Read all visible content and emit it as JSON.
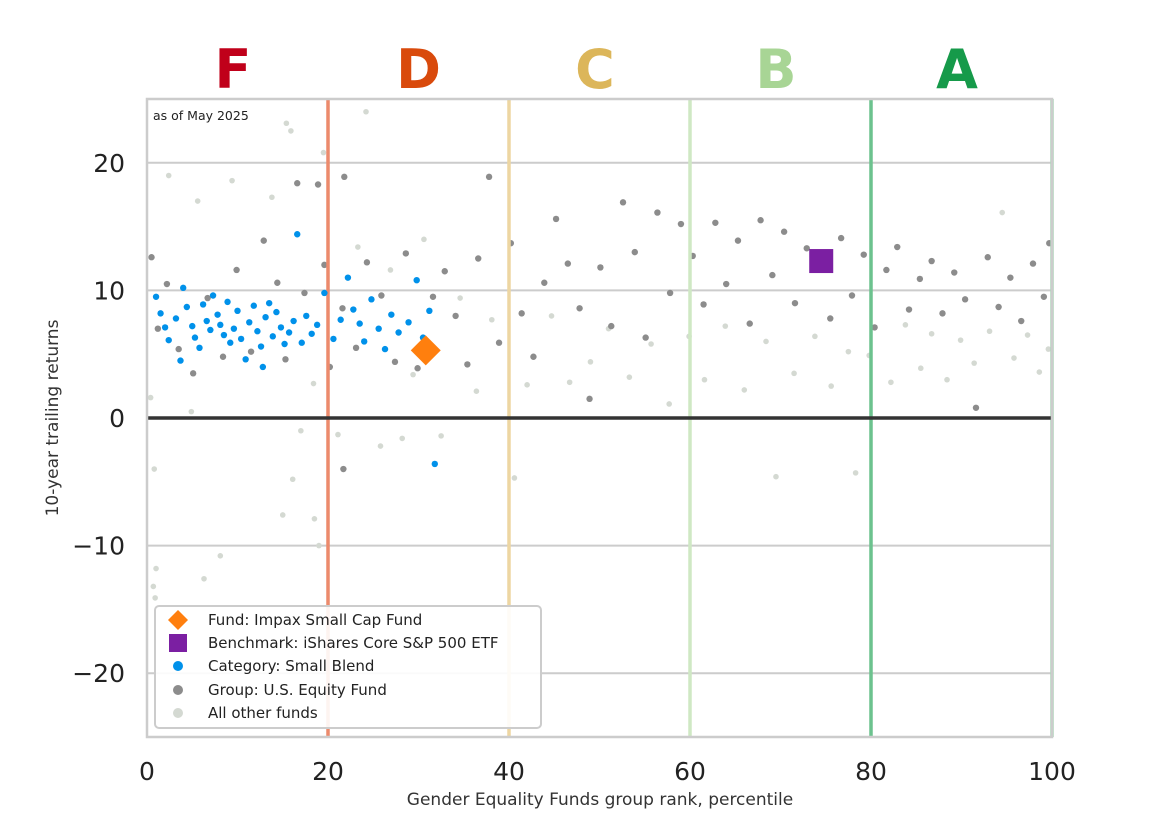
{
  "chart_data": {
    "type": "scatter",
    "annotation": "as of May 2025",
    "xlabel": "Gender Equality Funds group rank, percentile",
    "ylabel": "10-year trailing returns",
    "xlim": [
      0,
      100
    ],
    "ylim": [
      -25,
      25
    ],
    "xticks": [
      0,
      20,
      40,
      60,
      80,
      100
    ],
    "yticks": [
      -20,
      -10,
      0,
      10,
      20
    ],
    "ytick_labels": [
      "−20",
      "−10",
      "0",
      "10",
      "20"
    ],
    "grid": "horizontal",
    "zero_line": true,
    "grades": [
      {
        "label": "F",
        "center": 9.5,
        "color": "#c0001a"
      },
      {
        "label": "D",
        "center": 30,
        "color": "#d94a0c"
      },
      {
        "label": "C",
        "center": 49.5,
        "color": "#dcb65a"
      },
      {
        "label": "B",
        "center": 69.5,
        "color": "#a8d595"
      },
      {
        "label": "A",
        "center": 89.5,
        "color": "#169a4a"
      }
    ],
    "grade_boundaries": [
      {
        "x": 20,
        "color": "#ec8a6c"
      },
      {
        "x": 40,
        "color": "#edd6a2"
      },
      {
        "x": 60,
        "color": "#cfe8c4"
      },
      {
        "x": 80,
        "color": "#6cc28e"
      },
      {
        "x": 100,
        "color": "#a5d6b5"
      }
    ],
    "legend_position": "bottom-left",
    "series": [
      {
        "name": "Fund: Impax Small Cap Fund",
        "marker": "diamond",
        "color": "#ff7f0e",
        "points": [
          [
            30.8,
            5.3
          ]
        ]
      },
      {
        "name": "Benchmark: iShares Core S&P 500 ETF",
        "marker": "square",
        "color": "#7b1fa2",
        "points": [
          [
            74.5,
            12.3
          ]
        ]
      },
      {
        "name": "Category: Small Blend",
        "marker": "dot",
        "color": "#0091ea",
        "points": [
          [
            1,
            9.5
          ],
          [
            1.5,
            8.2
          ],
          [
            2,
            7.1
          ],
          [
            2.4,
            6.1
          ],
          [
            3.2,
            7.8
          ],
          [
            4,
            10.2
          ],
          [
            4.4,
            8.7
          ],
          [
            5,
            7.2
          ],
          [
            5.3,
            6.3
          ],
          [
            5.8,
            5.5
          ],
          [
            6.2,
            8.9
          ],
          [
            6.6,
            7.6
          ],
          [
            7,
            6.9
          ],
          [
            7.3,
            9.6
          ],
          [
            7.8,
            8.1
          ],
          [
            8.1,
            7.3
          ],
          [
            8.5,
            6.5
          ],
          [
            8.9,
            9.1
          ],
          [
            9.2,
            5.9
          ],
          [
            9.6,
            7.0
          ],
          [
            10,
            8.4
          ],
          [
            10.4,
            6.2
          ],
          [
            10.9,
            4.6
          ],
          [
            11.3,
            7.5
          ],
          [
            11.8,
            8.8
          ],
          [
            12.2,
            6.8
          ],
          [
            12.6,
            5.6
          ],
          [
            13.1,
            7.9
          ],
          [
            13.5,
            9.0
          ],
          [
            13.9,
            6.4
          ],
          [
            14.3,
            8.3
          ],
          [
            14.8,
            7.1
          ],
          [
            15.2,
            5.8
          ],
          [
            15.7,
            6.7
          ],
          [
            16.2,
            7.6
          ],
          [
            16.6,
            14.4
          ],
          [
            17.1,
            5.9
          ],
          [
            17.6,
            8.0
          ],
          [
            18.2,
            6.6
          ],
          [
            18.8,
            7.3
          ],
          [
            19.6,
            9.8
          ],
          [
            20.6,
            6.2
          ],
          [
            21.4,
            7.7
          ],
          [
            22.2,
            11.0
          ],
          [
            22.8,
            8.5
          ],
          [
            23.5,
            7.4
          ],
          [
            24.0,
            6.0
          ],
          [
            24.8,
            9.3
          ],
          [
            25.6,
            7.0
          ],
          [
            26.3,
            5.4
          ],
          [
            27.0,
            8.1
          ],
          [
            27.8,
            6.7
          ],
          [
            28.9,
            7.5
          ],
          [
            29.8,
            10.8
          ],
          [
            30.5,
            6.3
          ],
          [
            31.2,
            8.4
          ],
          [
            31.8,
            -3.6
          ],
          [
            3.7,
            4.5
          ],
          [
            12.8,
            4.0
          ]
        ]
      },
      {
        "name": "Group: U.S. Equity Fund",
        "marker": "dot",
        "color": "#8c8c8c",
        "points": [
          [
            0.5,
            12.6
          ],
          [
            1.2,
            7.0
          ],
          [
            2.2,
            10.5
          ],
          [
            3.5,
            5.4
          ],
          [
            5.1,
            3.5
          ],
          [
            6.7,
            9.4
          ],
          [
            8.4,
            4.8
          ],
          [
            9.9,
            11.6
          ],
          [
            11.5,
            5.2
          ],
          [
            12.9,
            13.9
          ],
          [
            14.4,
            10.6
          ],
          [
            15.3,
            4.6
          ],
          [
            16.6,
            18.4
          ],
          [
            17.4,
            9.8
          ],
          [
            18.9,
            18.3
          ],
          [
            19.6,
            12.0
          ],
          [
            20.2,
            4.0
          ],
          [
            21.6,
            8.6
          ],
          [
            21.8,
            18.9
          ],
          [
            21.7,
            -4.0
          ],
          [
            23.1,
            5.5
          ],
          [
            24.3,
            12.2
          ],
          [
            25.9,
            9.6
          ],
          [
            27.4,
            4.4
          ],
          [
            28.6,
            12.9
          ],
          [
            29.9,
            3.9
          ],
          [
            31.6,
            9.5
          ],
          [
            32.9,
            11.5
          ],
          [
            34.1,
            8.0
          ],
          [
            35.4,
            4.2
          ],
          [
            36.6,
            12.5
          ],
          [
            37.8,
            18.9
          ],
          [
            38.9,
            5.9
          ],
          [
            40.2,
            13.7
          ],
          [
            41.4,
            8.2
          ],
          [
            42.7,
            4.8
          ],
          [
            43.9,
            10.6
          ],
          [
            45.2,
            15.6
          ],
          [
            46.5,
            12.1
          ],
          [
            47.8,
            8.6
          ],
          [
            48.9,
            1.5
          ],
          [
            50.1,
            11.8
          ],
          [
            51.3,
            7.2
          ],
          [
            52.6,
            16.9
          ],
          [
            53.9,
            13.0
          ],
          [
            55.1,
            6.3
          ],
          [
            56.4,
            16.1
          ],
          [
            57.8,
            9.8
          ],
          [
            59.0,
            15.2
          ],
          [
            60.3,
            12.7
          ],
          [
            61.5,
            8.9
          ],
          [
            62.8,
            15.3
          ],
          [
            64.0,
            10.5
          ],
          [
            65.3,
            13.9
          ],
          [
            66.6,
            7.4
          ],
          [
            67.8,
            15.5
          ],
          [
            69.1,
            11.2
          ],
          [
            70.4,
            14.6
          ],
          [
            71.6,
            9.0
          ],
          [
            72.9,
            13.3
          ],
          [
            74.2,
            11.9
          ],
          [
            75.5,
            7.8
          ],
          [
            76.7,
            14.1
          ],
          [
            77.9,
            9.6
          ],
          [
            79.2,
            12.8
          ],
          [
            80.4,
            7.1
          ],
          [
            81.7,
            11.6
          ],
          [
            82.9,
            13.4
          ],
          [
            84.2,
            8.5
          ],
          [
            85.4,
            10.9
          ],
          [
            86.7,
            12.3
          ],
          [
            87.9,
            8.2
          ],
          [
            89.2,
            11.4
          ],
          [
            90.4,
            9.3
          ],
          [
            91.6,
            0.8
          ],
          [
            92.9,
            12.6
          ],
          [
            94.1,
            8.7
          ],
          [
            95.4,
            11.0
          ],
          [
            96.6,
            7.6
          ],
          [
            97.9,
            12.1
          ],
          [
            99.1,
            9.5
          ],
          [
            99.7,
            13.7
          ]
        ]
      },
      {
        "name": "All other funds",
        "marker": "dot",
        "color": "#d4d9d2",
        "points": [
          [
            0.4,
            1.6
          ],
          [
            0.8,
            -4.0
          ],
          [
            0.7,
            -13.2
          ],
          [
            0.9,
            -14.1
          ],
          [
            1.0,
            -11.8
          ],
          [
            2.4,
            19.0
          ],
          [
            4.9,
            0.5
          ],
          [
            5.6,
            17.0
          ],
          [
            6.3,
            -12.6
          ],
          [
            8.1,
            -10.8
          ],
          [
            9.4,
            18.6
          ],
          [
            13.8,
            17.3
          ],
          [
            15.0,
            -7.6
          ],
          [
            15.4,
            23.1
          ],
          [
            15.9,
            22.5
          ],
          [
            16.1,
            -4.8
          ],
          [
            17.0,
            -1.0
          ],
          [
            18.5,
            -7.9
          ],
          [
            18.4,
            2.7
          ],
          [
            19.5,
            20.8
          ],
          [
            19.0,
            -10.0
          ],
          [
            21.1,
            -1.3
          ],
          [
            23.3,
            13.4
          ],
          [
            24.2,
            24.0
          ],
          [
            25.8,
            -2.2
          ],
          [
            26.9,
            11.6
          ],
          [
            28.2,
            -1.6
          ],
          [
            29.4,
            3.4
          ],
          [
            30.6,
            14.0
          ],
          [
            32.5,
            -1.4
          ],
          [
            34.6,
            9.4
          ],
          [
            36.4,
            2.1
          ],
          [
            38.1,
            7.7
          ],
          [
            40.6,
            -4.7
          ],
          [
            42.0,
            2.6
          ],
          [
            44.7,
            8.0
          ],
          [
            46.7,
            2.8
          ],
          [
            49.0,
            4.4
          ],
          [
            51.0,
            7.0
          ],
          [
            53.3,
            3.2
          ],
          [
            55.7,
            5.8
          ],
          [
            57.7,
            1.1
          ],
          [
            59.9,
            6.4
          ],
          [
            61.6,
            3.0
          ],
          [
            63.9,
            7.2
          ],
          [
            66.0,
            2.2
          ],
          [
            68.4,
            6.0
          ],
          [
            69.5,
            -4.6
          ],
          [
            71.5,
            3.5
          ],
          [
            73.8,
            6.4
          ],
          [
            75.6,
            2.5
          ],
          [
            77.5,
            5.2
          ],
          [
            78.3,
            -4.3
          ],
          [
            79.8,
            4.9
          ],
          [
            82.2,
            2.8
          ],
          [
            83.8,
            7.3
          ],
          [
            85.5,
            3.9
          ],
          [
            86.7,
            6.6
          ],
          [
            88.4,
            3.0
          ],
          [
            89.9,
            6.1
          ],
          [
            91.4,
            4.3
          ],
          [
            93.1,
            6.8
          ],
          [
            94.5,
            16.1
          ],
          [
            95.8,
            4.7
          ],
          [
            97.3,
            6.5
          ],
          [
            98.6,
            3.6
          ],
          [
            99.6,
            5.4
          ]
        ]
      }
    ]
  }
}
